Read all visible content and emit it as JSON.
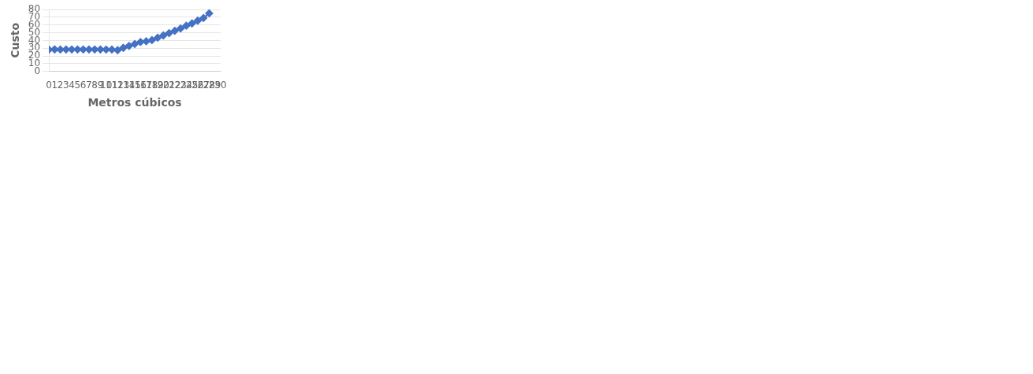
{
  "chart_data": {
    "type": "line",
    "x": [
      0,
      1,
      2,
      3,
      4,
      5,
      6,
      7,
      8,
      9,
      10,
      11,
      12,
      13,
      14,
      15,
      16,
      17,
      18,
      19,
      20,
      21,
      22,
      23,
      24,
      25,
      26,
      27,
      28
    ],
    "values": [
      28.2,
      28.5,
      28.3,
      28.4,
      28.4,
      28.4,
      28.4,
      28.4,
      28.4,
      28.4,
      28.3,
      28.3,
      27.5,
      30.5,
      33.0,
      35.5,
      38.0,
      39.0,
      40.5,
      43.5,
      46.5,
      49.5,
      52.5,
      55.5,
      59.0,
      62.0,
      65.5,
      69.0,
      75.0
    ],
    "color": "#4472C4",
    "marker": "diamond",
    "xlabel": "Metros cúbicos",
    "ylabel": "Custo",
    "xlim": [
      0,
      30
    ],
    "ylim": [
      0,
      80
    ],
    "xticks": [
      0,
      1,
      2,
      3,
      4,
      5,
      6,
      7,
      8,
      9,
      10,
      11,
      12,
      13,
      14,
      15,
      16,
      17,
      18,
      19,
      20,
      21,
      22,
      23,
      24,
      25,
      26,
      27,
      28,
      29,
      30
    ],
    "yticks": [
      0,
      10,
      20,
      30,
      40,
      50,
      60,
      70,
      80
    ],
    "grid": "y"
  }
}
